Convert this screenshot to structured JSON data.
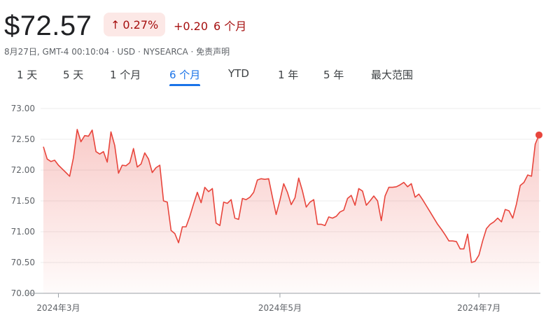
{
  "quote": {
    "price": "$72.57",
    "change_percent": "0.27%",
    "change_abs": "+0.20",
    "period_label": "6 个月",
    "meta": "8月27日, GMT-4 00:10:04 · USD · NYSEARCA · 免责声明"
  },
  "tabs": [
    {
      "label": "1 天",
      "active": false
    },
    {
      "label": "5 天",
      "active": false
    },
    {
      "label": "1 个月",
      "active": false
    },
    {
      "label": "6 个月",
      "active": true
    },
    {
      "label": "YTD",
      "active": false
    },
    {
      "label": "1 年",
      "active": false
    },
    {
      "label": "5 年",
      "active": false
    },
    {
      "label": "最大范围",
      "active": false
    }
  ],
  "colors": {
    "line": "#e8453c",
    "fill": "#e8453c",
    "accent": "#1a73e8",
    "negative_text": "#a50e0e",
    "chip_bg": "#fce8e6"
  },
  "chart_data": {
    "type": "line",
    "y_ticks": [
      "73.00",
      "72.50",
      "72.00",
      "71.50",
      "71.00",
      "70.50",
      "70.00"
    ],
    "ylim": [
      70.0,
      73.0
    ],
    "x_labels": [
      {
        "label": "2024年3月",
        "index": 4
      },
      {
        "label": "2024年5月",
        "index": 63
      },
      {
        "label": "2024年7月",
        "index": 116
      }
    ],
    "grid": true,
    "series": [
      {
        "values": [
          72.38,
          72.18,
          72.14,
          72.16,
          72.08,
          72.02,
          71.96,
          71.9,
          72.2,
          72.66,
          72.46,
          72.56,
          72.55,
          72.65,
          72.3,
          72.26,
          72.3,
          72.13,
          72.62,
          72.4,
          71.95,
          72.08,
          72.07,
          72.12,
          72.35,
          72.05,
          72.1,
          72.28,
          72.18,
          71.96,
          72.04,
          72.08,
          71.5,
          71.48,
          71.02,
          70.97,
          70.82,
          71.08,
          71.08,
          71.25,
          71.45,
          71.64,
          71.47,
          71.72,
          71.65,
          71.7,
          71.14,
          71.1,
          71.48,
          71.46,
          71.52,
          71.22,
          71.2,
          71.54,
          71.52,
          71.56,
          71.64,
          71.84,
          71.86,
          71.85,
          71.86,
          71.56,
          71.28,
          71.51,
          71.78,
          71.64,
          71.44,
          71.55,
          71.87,
          71.66,
          71.4,
          71.48,
          71.52,
          71.12,
          71.12,
          71.1,
          71.24,
          71.22,
          71.25,
          71.32,
          71.35,
          71.54,
          71.59,
          71.43,
          71.7,
          71.66,
          71.43,
          71.5,
          71.58,
          71.5,
          71.18,
          71.58,
          71.72,
          71.72,
          71.73,
          71.76,
          71.8,
          71.73,
          71.78,
          71.56,
          71.61,
          71.52,
          71.42,
          71.32,
          71.22,
          71.12,
          71.04,
          70.95,
          70.85,
          70.85,
          70.84,
          70.72,
          70.72,
          70.96,
          70.5,
          70.52,
          70.62,
          70.85,
          71.05,
          71.12,
          71.16,
          71.22,
          71.16,
          71.36,
          71.34,
          71.22,
          71.45,
          71.75,
          71.8,
          71.92,
          71.9,
          72.42,
          72.57
        ]
      }
    ]
  }
}
